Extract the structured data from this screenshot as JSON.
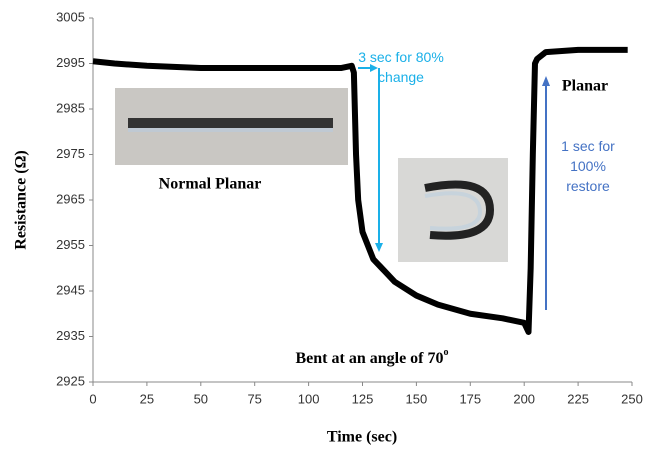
{
  "chart_data": {
    "type": "line",
    "x_label": "Time (sec)",
    "y_label": "Resistance (Ω)",
    "x": [
      0,
      10,
      25,
      50,
      75,
      100,
      115,
      120,
      121,
      122,
      123,
      125,
      130,
      140,
      150,
      160,
      175,
      190,
      200,
      202,
      203,
      204,
      205,
      206,
      210,
      225,
      248
    ],
    "series": [
      {
        "color": "#000000",
        "values": [
          2995.5,
          2995,
          2994.5,
          2994,
          2994,
          2994,
          2994,
          2994.5,
          2993,
          2975,
          2965,
          2958,
          2952,
          2947,
          2944,
          2942,
          2940,
          2939,
          2938,
          2936,
          2950,
          2975,
          2995,
          2996,
          2997.5,
          2998,
          2998
        ]
      }
    ],
    "xlim": [
      0,
      250
    ],
    "xticks": [
      0,
      25,
      50,
      75,
      100,
      125,
      150,
      175,
      200,
      225,
      250
    ],
    "ylim": [
      2925,
      3005
    ],
    "yticks": [
      2925,
      2935,
      2945,
      2955,
      2965,
      2975,
      2985,
      2995,
      3005
    ],
    "grid": false,
    "annotations": {
      "change": [
        "3 sec for 80%",
        "change"
      ],
      "restore": [
        "1 sec for",
        "100%",
        "restore"
      ],
      "planar": "Planar",
      "normal_planar": "Normal Planar",
      "bent": "Bent at an angle of 70",
      "bent_superscript": "o"
    }
  }
}
